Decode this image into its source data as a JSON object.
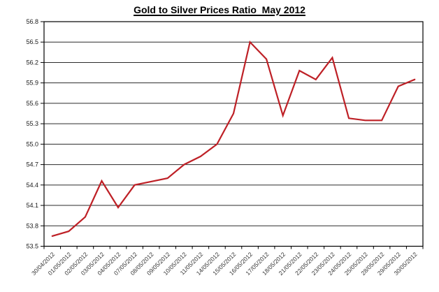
{
  "page": {
    "title": "Gold to Silver Prices Ratio  May 2012"
  },
  "chart_data": {
    "type": "line",
    "title": "Gold to Silver Prices Ratio  May 2012",
    "categories": [
      "30/04/2012",
      "01/05/2012",
      "02/05/2012",
      "03/05/2012",
      "04/05/2012",
      "07/05/2012",
      "08/05/2012",
      "09/05/2012",
      "10/05/2012",
      "11/05/2012",
      "14/05/2012",
      "15/05/2012",
      "16/05/2012",
      "17/05/2012",
      "18/05/2012",
      "21/05/2012",
      "22/05/2012",
      "23/05/2012",
      "24/05/2012",
      "25/05/2012",
      "28/05/2012",
      "29/05/2012",
      "30/05/2012"
    ],
    "values": [
      53.65,
      53.72,
      53.93,
      54.46,
      54.07,
      54.4,
      54.45,
      54.5,
      54.7,
      54.82,
      55.0,
      55.45,
      56.5,
      56.25,
      55.42,
      56.08,
      55.95,
      56.27,
      55.38,
      55.35,
      55.35,
      55.85,
      55.95
    ],
    "xlabel": "",
    "ylabel": "",
    "ylim": [
      53.5,
      56.8
    ],
    "ytick_step": 0.3,
    "ytick_labels": [
      "53.5",
      "53.8",
      "54.1",
      "54.4",
      "54.7",
      "55.0",
      "55.3",
      "55.6",
      "55.9",
      "56.2",
      "56.5",
      "56.8"
    ],
    "grid": true,
    "legend_position": "none",
    "line_color": "#be2026",
    "grid_color": "#2b2b2b",
    "axis_color": "#000000",
    "background_color": "#ffffff"
  }
}
